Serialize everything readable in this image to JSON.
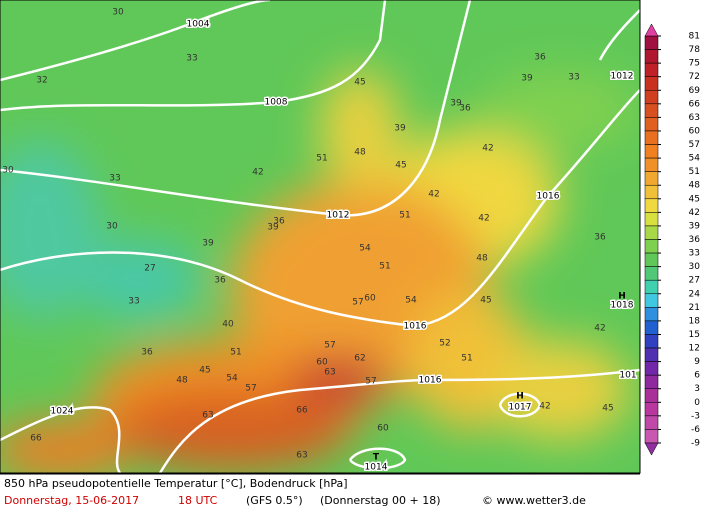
{
  "header": {
    "title": "850 hPa pseudopotentielle Temperatur [°C], Bodendruck [hPa]",
    "date": "Donnerstag, 15-06-2017",
    "time": "18 UTC",
    "model": "(GFS 0.5°)",
    "run": "(Donnerstag 00 + 18)",
    "credit": "© www.wetter3.de"
  },
  "legend": {
    "ticks": [
      81,
      78,
      75,
      72,
      69,
      66,
      63,
      60,
      57,
      54,
      51,
      48,
      45,
      42,
      39,
      36,
      33,
      30,
      27,
      24,
      21,
      18,
      15,
      12,
      9,
      6,
      3,
      0,
      -3,
      -6,
      -9
    ],
    "colors": [
      "#a01040",
      "#b01830",
      "#c02028",
      "#c83020",
      "#d04020",
      "#d85020",
      "#e06020",
      "#e87020",
      "#f08020",
      "#f09028",
      "#f0a830",
      "#f0c038",
      "#f0d840",
      "#d8e040",
      "#a8d848",
      "#80d050",
      "#60c858",
      "#50c878",
      "#40d0b0",
      "#40c8e0",
      "#3090e0",
      "#2060d0",
      "#3040c0",
      "#5030b0",
      "#7028a8",
      "#9028a0",
      "#a83098",
      "#b838a0",
      "#c048a8",
      "#c858b0"
    ]
  },
  "isobar_labels": [
    "1004",
    "1008",
    "1012",
    "1016",
    "1016",
    "1016",
    "1012",
    "1018",
    "1024",
    "1017",
    "1014",
    "101",
    "H",
    "H",
    "T"
  ],
  "temp_labels": [
    "30",
    "33",
    "32",
    "30",
    "33",
    "30",
    "27",
    "33",
    "36",
    "48",
    "45",
    "54",
    "51",
    "57",
    "63",
    "66",
    "63",
    "66",
    "57",
    "60",
    "63",
    "62",
    "57",
    "60",
    "54",
    "52",
    "51",
    "45",
    "42",
    "48",
    "42",
    "51",
    "54",
    "51",
    "57",
    "60",
    "42",
    "45",
    "42",
    "36",
    "39",
    "39",
    "36",
    "33",
    "39",
    "36",
    "45",
    "42",
    "45",
    "48",
    "51",
    "42",
    "39",
    "36",
    "36",
    "39",
    "40"
  ]
}
